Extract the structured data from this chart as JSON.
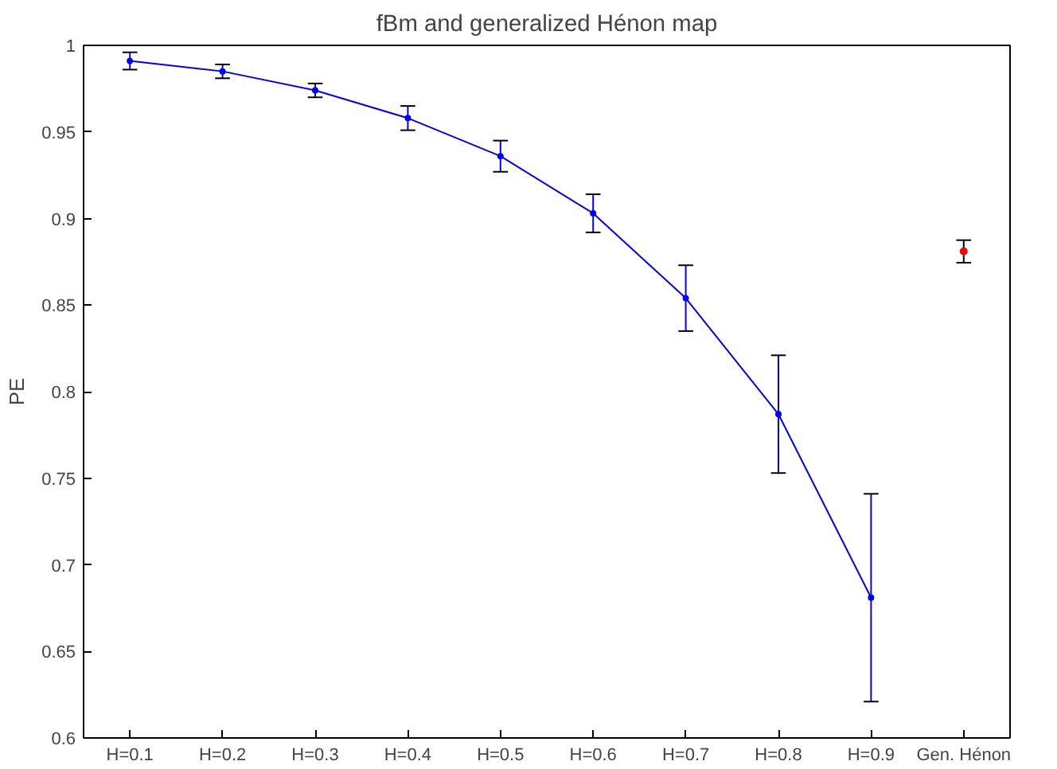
{
  "chart_data": {
    "type": "line",
    "title": "fBm and generalized Hénon map",
    "ylabel": "PE",
    "categories": [
      "H=0.1",
      "H=0.2",
      "H=0.3",
      "H=0.4",
      "H=0.5",
      "H=0.6",
      "H=0.7",
      "H=0.8",
      "H=0.9",
      "Gen. Hénon"
    ],
    "series": [
      {
        "color": "#0000ff",
        "values": [
          0.991,
          0.985,
          0.974,
          0.958,
          0.936,
          0.903,
          0.854,
          0.787,
          0.681,
          null
        ],
        "errors": [
          0.005,
          0.004,
          0.004,
          0.007,
          0.009,
          0.011,
          0.019,
          0.034,
          0.06,
          null
        ]
      },
      {
        "type": "scatter",
        "color": "#ff0000",
        "values": [
          null,
          null,
          null,
          null,
          null,
          null,
          null,
          null,
          null,
          0.881
        ],
        "errors": [
          null,
          null,
          null,
          null,
          null,
          null,
          null,
          null,
          null,
          0.0065
        ]
      }
    ],
    "marker": "circle",
    "ylim": [
      0.6,
      1
    ],
    "yticks": [
      0.6,
      0.65,
      0.7,
      0.75,
      0.8,
      0.85,
      0.9,
      0.95,
      1
    ],
    "grid": false
  }
}
